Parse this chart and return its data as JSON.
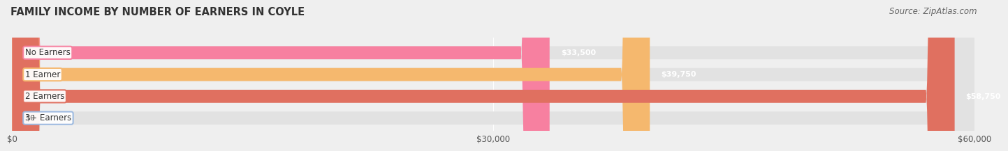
{
  "title": "FAMILY INCOME BY NUMBER OF EARNERS IN COYLE",
  "source": "Source: ZipAtlas.com",
  "categories": [
    "No Earners",
    "1 Earner",
    "2 Earners",
    "3+ Earners"
  ],
  "values": [
    33500,
    39750,
    58750,
    0
  ],
  "bar_colors": [
    "#f780a0",
    "#f5b86e",
    "#e07060",
    "#9ab8e0"
  ],
  "label_colors": [
    "#f780a0",
    "#f5b86e",
    "#e07060",
    "#9ab8e0"
  ],
  "value_labels": [
    "$33,500",
    "$39,750",
    "$58,750",
    "$0"
  ],
  "xlim": [
    0,
    60000
  ],
  "xticks": [
    0,
    30000,
    60000
  ],
  "xtick_labels": [
    "$0",
    "$30,000",
    "$60,000"
  ],
  "background_color": "#efefef",
  "bar_bg_color": "#e2e2e2",
  "title_fontsize": 10.5,
  "source_fontsize": 8.5,
  "label_fontsize": 8.5,
  "value_fontsize": 8.0
}
